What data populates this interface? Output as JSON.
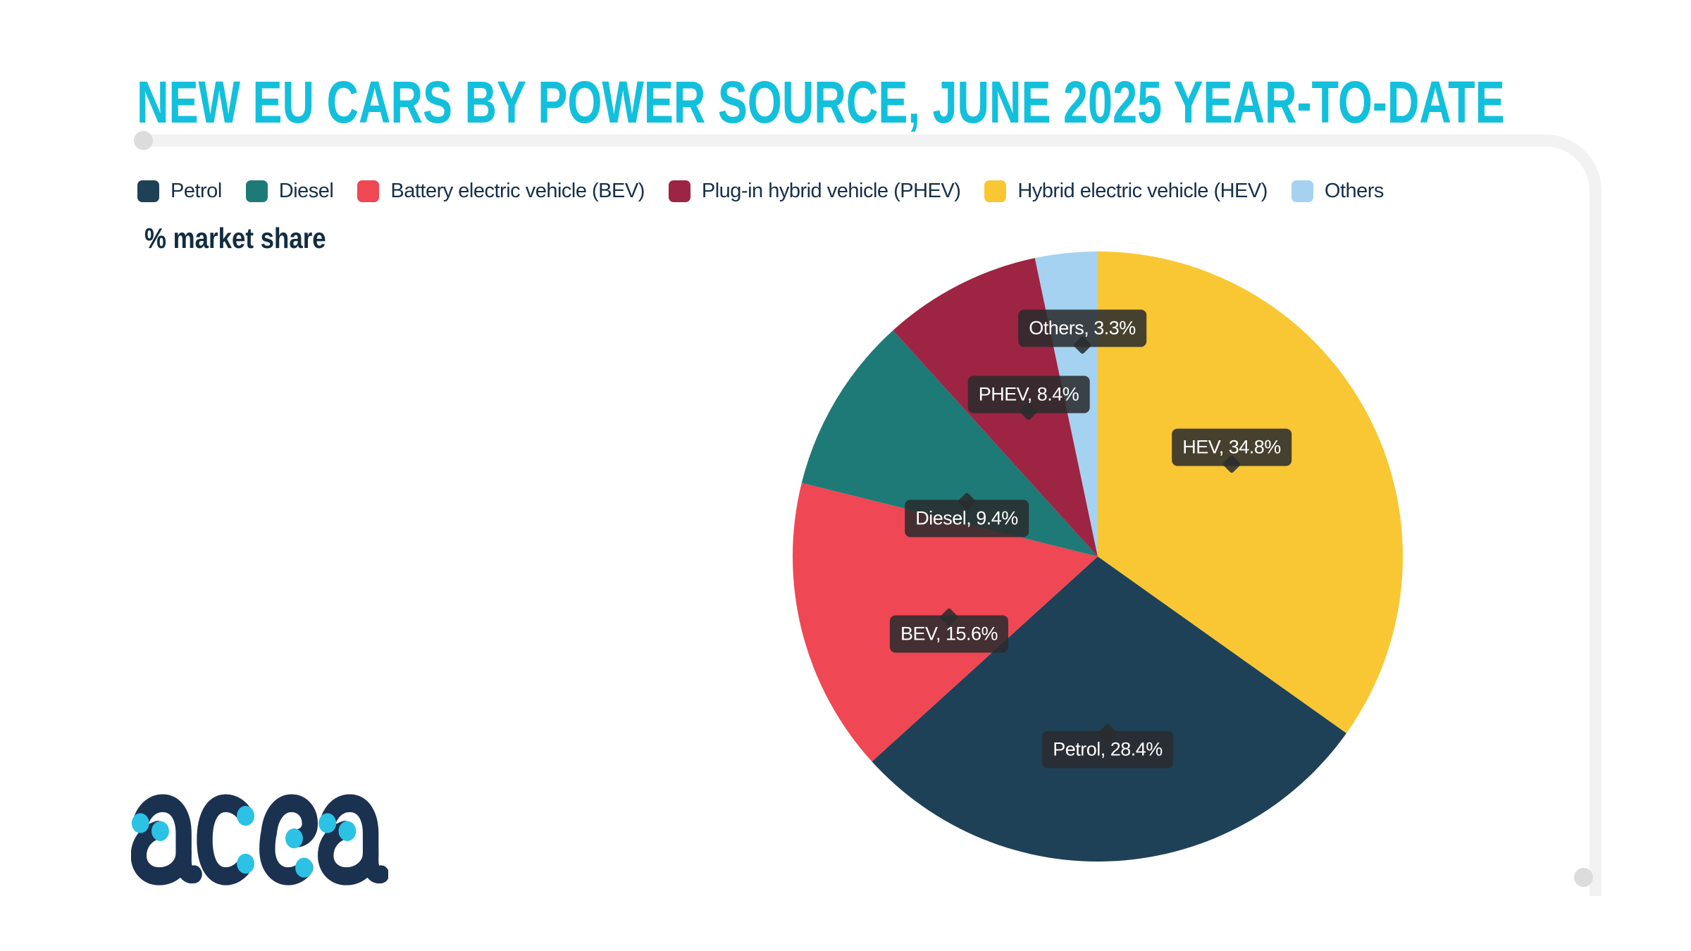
{
  "header": {
    "title": "NEW EU CARS BY POWER SOURCE, JUNE 2025 YEAR-TO-DATE",
    "title_color": "#13C0DC"
  },
  "legend": {
    "items": [
      {
        "label": "Petrol",
        "color": "#1E4157"
      },
      {
        "label": "Diesel",
        "color": "#1E7A77"
      },
      {
        "label": "Battery electric vehicle (BEV)",
        "color": "#EF4753"
      },
      {
        "label": "Plug-in hybrid vehicle (PHEV)",
        "color": "#9E2443"
      },
      {
        "label": "Hybrid electric vehicle (HEV)",
        "color": "#F9C733"
      },
      {
        "label": "Others",
        "color": "#A5D2F0"
      }
    ]
  },
  "chart_data": {
    "type": "pie",
    "title": "NEW EU CARS BY POWER SOURCE, JUNE 2025 YEAR-TO-DATE",
    "unit": "% market share",
    "start": "12-oclock",
    "direction": "clockwise",
    "series": [
      {
        "name": "HEV",
        "legend_name": "Hybrid electric vehicle (HEV)",
        "value": 34.8,
        "color": "#F9C733",
        "label": "HEV, 34.8%"
      },
      {
        "name": "Petrol",
        "legend_name": "Petrol",
        "value": 28.4,
        "color": "#1E4157",
        "label": "Petrol, 28.4%"
      },
      {
        "name": "BEV",
        "legend_name": "Battery electric vehicle (BEV)",
        "value": 15.6,
        "color": "#EF4753",
        "label": "BEV, 15.6%"
      },
      {
        "name": "Diesel",
        "legend_name": "Diesel",
        "value": 9.4,
        "color": "#1E7A77",
        "label": "Diesel, 9.4%"
      },
      {
        "name": "PHEV",
        "legend_name": "Plug-in hybrid vehicle (PHEV)",
        "value": 8.4,
        "color": "#9E2443",
        "label": "PHEV, 8.4%"
      },
      {
        "name": "Others",
        "legend_name": "Others",
        "value": 3.3,
        "color": "#A5D2F0",
        "label": "Others, 3.3%"
      }
    ]
  },
  "logo": {
    "text": "acea",
    "navy": "#1B3150",
    "cyan": "#2BC2E6"
  }
}
